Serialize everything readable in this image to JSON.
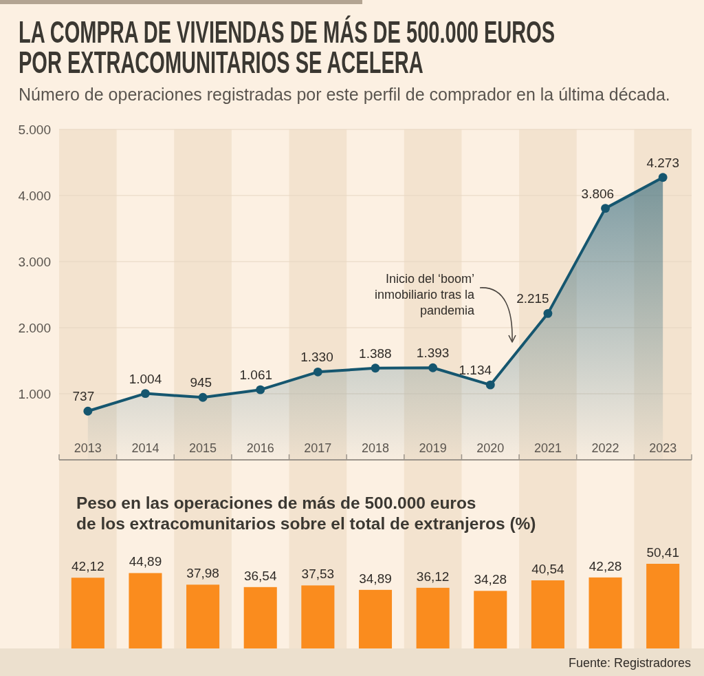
{
  "chart_data": [
    {
      "type": "area",
      "title": "LA COMPRA DE VIVIENDAS DE MÁS DE 500.000 EUROS\nPOR EXTRACOMUNITARIOS SE ACELERA",
      "subtitle": "Número de operaciones registradas por este perfil de comprador en la última década.",
      "categories": [
        "2013",
        "2014",
        "2015",
        "2016",
        "2017",
        "2018",
        "2019",
        "2020",
        "2021",
        "2022",
        "2023"
      ],
      "values": [
        737,
        1004,
        945,
        1061,
        1330,
        1388,
        1393,
        1134,
        2215,
        3806,
        4273
      ],
      "value_labels": [
        "737",
        "1.004",
        "945",
        "1.061",
        "1.330",
        "1.388",
        "1.393",
        "1.134",
        "2.215",
        "3.806",
        "4.273"
      ],
      "color": "#15566f",
      "marker": "circle",
      "ylim": [
        0,
        5000
      ],
      "yticks": [
        {
          "value": 1000,
          "label": "1.000"
        },
        {
          "value": 2000,
          "label": "2.000"
        },
        {
          "value": 3000,
          "label": "3.000"
        },
        {
          "value": 4000,
          "label": "4.000"
        },
        {
          "value": 5000,
          "label": "5.000"
        }
      ],
      "grid": "y",
      "annotations": [
        "Inicio del ‘boom’\ninmobiliario tras la\npandemia"
      ]
    },
    {
      "type": "bar",
      "title": "Peso en las operaciones de más de 500.000 euros\nde los extracomunitarios sobre el total de extranjeros (%)",
      "categories": [
        "2013",
        "2014",
        "2015",
        "2016",
        "2017",
        "2018",
        "2019",
        "2020",
        "2021",
        "2022",
        "2023"
      ],
      "values": [
        42.12,
        44.89,
        37.98,
        36.54,
        37.53,
        34.89,
        36.12,
        34.28,
        40.54,
        42.28,
        50.41
      ],
      "value_labels": [
        "42,12",
        "44,89",
        "37,98",
        "36,54",
        "37,53",
        "34,89",
        "36,12",
        "34,28",
        "40,54",
        "42,28",
        "50,41"
      ],
      "color": "#fa8c1e",
      "tick_labels": false,
      "annotations": [
        "Fuente: Registradores"
      ]
    }
  ]
}
